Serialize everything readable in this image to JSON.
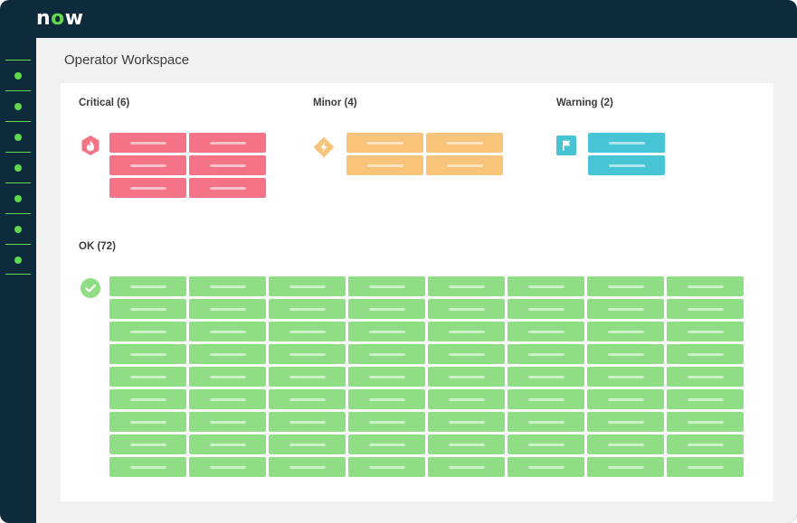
{
  "app": {
    "logo": {
      "prefix": "n",
      "o": "o",
      "suffix": "w"
    },
    "page_title": "Operator Workspace"
  },
  "sidebar": {
    "item_count": 7
  },
  "colors": {
    "critical": "#f47386",
    "minor": "#f8c47a",
    "warning": "#48c5d4",
    "ok": "#8fdd84",
    "nav_accent": "#62d84e",
    "frame": "#0d2b3a"
  },
  "groups": {
    "critical": {
      "label": "Critical (6)",
      "count": 6,
      "icon": "critical-alert-icon"
    },
    "minor": {
      "label": "Minor (4)",
      "count": 4,
      "icon": "minor-alert-icon"
    },
    "warning": {
      "label": "Warning (2)",
      "count": 2,
      "icon": "warning-flag-icon"
    },
    "ok": {
      "label": "OK (72)",
      "count": 72,
      "icon": "ok-check-icon"
    }
  }
}
